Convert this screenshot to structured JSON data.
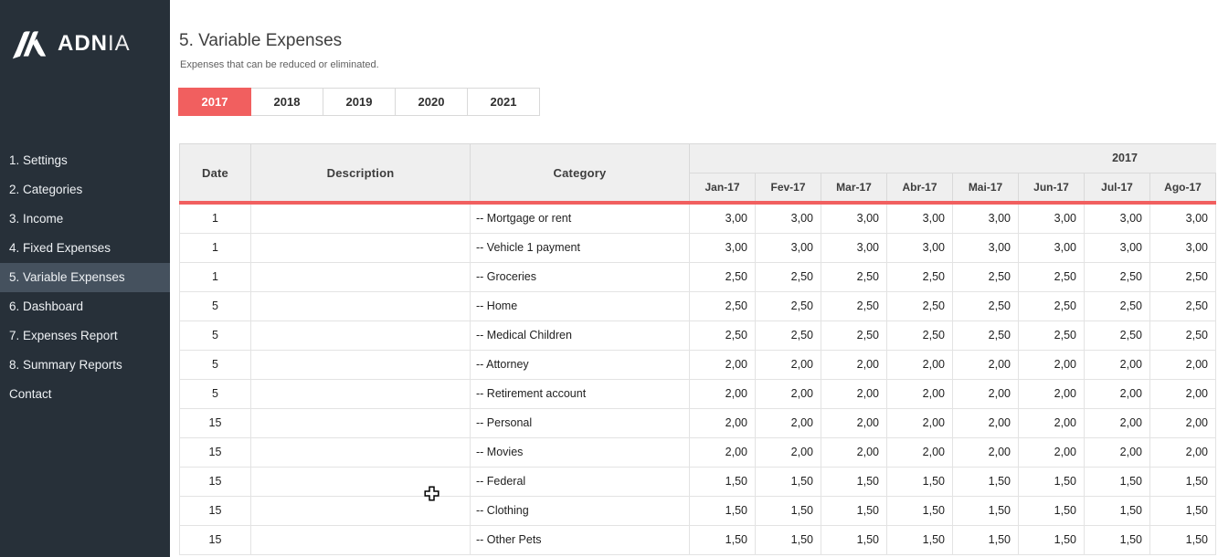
{
  "sidebar": {
    "logo": {
      "brand_bold": "ADN",
      "brand_light": "IA"
    },
    "items": [
      {
        "label": "1. Settings",
        "active": false
      },
      {
        "label": "2. Categories",
        "active": false
      },
      {
        "label": "3. Income",
        "active": false
      },
      {
        "label": "4. Fixed Expenses",
        "active": false
      },
      {
        "label": "5. Variable Expenses",
        "active": true
      },
      {
        "label": "6. Dashboard",
        "active": false
      },
      {
        "label": "7. Expenses Report",
        "active": false
      },
      {
        "label": "8. Summary Reports",
        "active": false
      },
      {
        "label": "Contact",
        "active": false
      }
    ]
  },
  "page": {
    "title": "5. Variable Expenses",
    "subtitle": "Expenses that can be reduced or eliminated."
  },
  "year_tabs": [
    {
      "label": "2017",
      "active": true
    },
    {
      "label": "2018",
      "active": false
    },
    {
      "label": "2019",
      "active": false
    },
    {
      "label": "2020",
      "active": false
    },
    {
      "label": "2021",
      "active": false
    }
  ],
  "table": {
    "headers": {
      "date": "Date",
      "description": "Description",
      "category": "Category"
    },
    "year_group_label": "2017",
    "month_headers": [
      "Jan-17",
      "Fev-17",
      "Mar-17",
      "Abr-17",
      "Mai-17",
      "Jun-17",
      "Jul-17",
      "Ago-17"
    ],
    "rows": [
      {
        "date": "1",
        "description": "",
        "category": "-- Mortgage or rent",
        "values": [
          "3,00",
          "3,00",
          "3,00",
          "3,00",
          "3,00",
          "3,00",
          "3,00",
          "3,00"
        ]
      },
      {
        "date": "1",
        "description": "",
        "category": "-- Vehicle 1 payment",
        "values": [
          "3,00",
          "3,00",
          "3,00",
          "3,00",
          "3,00",
          "3,00",
          "3,00",
          "3,00"
        ]
      },
      {
        "date": "1",
        "description": "",
        "category": "-- Groceries",
        "values": [
          "2,50",
          "2,50",
          "2,50",
          "2,50",
          "2,50",
          "2,50",
          "2,50",
          "2,50"
        ]
      },
      {
        "date": "5",
        "description": "",
        "category": "-- Home",
        "values": [
          "2,50",
          "2,50",
          "2,50",
          "2,50",
          "2,50",
          "2,50",
          "2,50",
          "2,50"
        ]
      },
      {
        "date": "5",
        "description": "",
        "category": "-- Medical Children",
        "values": [
          "2,50",
          "2,50",
          "2,50",
          "2,50",
          "2,50",
          "2,50",
          "2,50",
          "2,50"
        ]
      },
      {
        "date": "5",
        "description": "",
        "category": "-- Attorney",
        "values": [
          "2,00",
          "2,00",
          "2,00",
          "2,00",
          "2,00",
          "2,00",
          "2,00",
          "2,00"
        ]
      },
      {
        "date": "5",
        "description": "",
        "category": "-- Retirement account",
        "values": [
          "2,00",
          "2,00",
          "2,00",
          "2,00",
          "2,00",
          "2,00",
          "2,00",
          "2,00"
        ]
      },
      {
        "date": "15",
        "description": "",
        "category": "-- Personal",
        "values": [
          "2,00",
          "2,00",
          "2,00",
          "2,00",
          "2,00",
          "2,00",
          "2,00",
          "2,00"
        ]
      },
      {
        "date": "15",
        "description": "",
        "category": "-- Movies",
        "values": [
          "2,00",
          "2,00",
          "2,00",
          "2,00",
          "2,00",
          "2,00",
          "2,00",
          "2,00"
        ]
      },
      {
        "date": "15",
        "description": "",
        "category": "-- Federal",
        "values": [
          "1,50",
          "1,50",
          "1,50",
          "1,50",
          "1,50",
          "1,50",
          "1,50",
          "1,50"
        ]
      },
      {
        "date": "15",
        "description": "",
        "category": "-- Clothing",
        "values": [
          "1,50",
          "1,50",
          "1,50",
          "1,50",
          "1,50",
          "1,50",
          "1,50",
          "1,50"
        ]
      },
      {
        "date": "15",
        "description": "",
        "category": "-- Other Pets",
        "values": [
          "1,50",
          "1,50",
          "1,50",
          "1,50",
          "1,50",
          "1,50",
          "1,50",
          "1,50"
        ]
      }
    ]
  },
  "colors": {
    "accent": "#f15f5f",
    "sidebar_bg": "#273039",
    "sidebar_active_bg": "#45515e",
    "header_bg": "#efefef",
    "border": "#d9d9d9",
    "row_border": "#e3e3e3"
  }
}
